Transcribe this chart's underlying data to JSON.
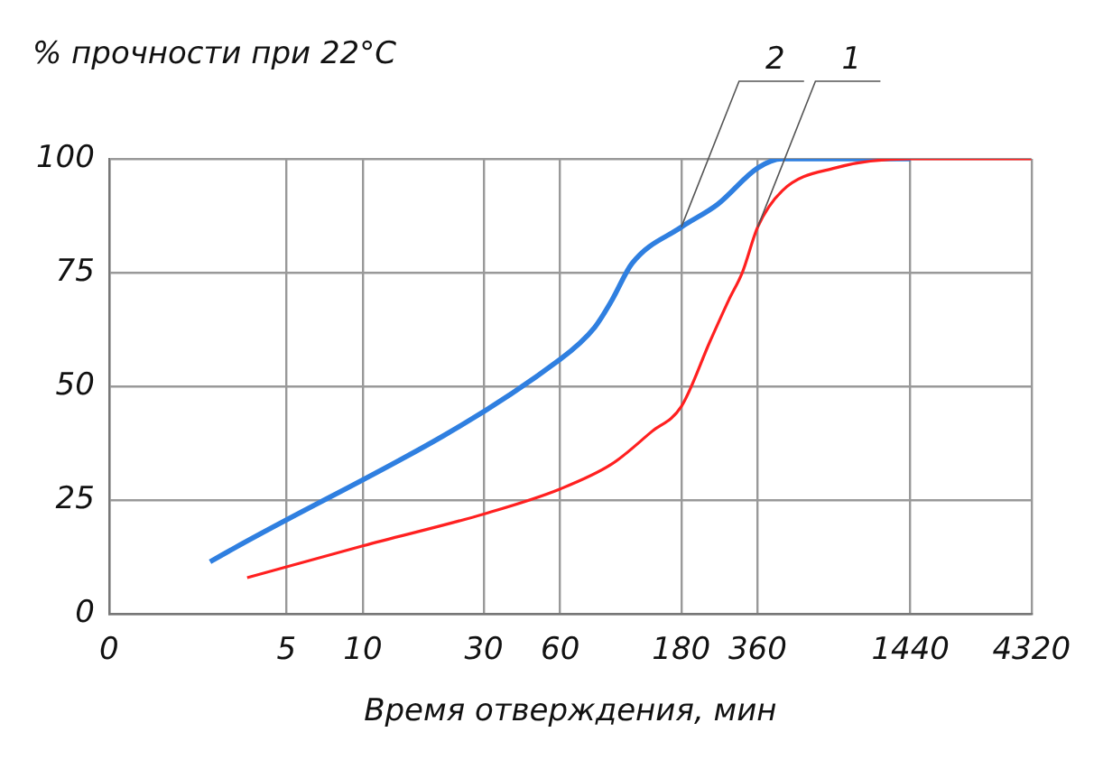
{
  "chart_data": {
    "type": "line",
    "ylabel": "% прочности при 22°C",
    "xlabel": "Время отверждения, мин",
    "log": "x",
    "xlim": [
      0,
      4320
    ],
    "xticks": [
      0,
      5,
      10,
      30,
      60,
      180,
      360,
      1440,
      4320
    ],
    "ylim": [
      0,
      100
    ],
    "yticks": [
      0,
      25,
      50,
      75,
      100
    ],
    "grid": true,
    "legend": false,
    "marker": "none",
    "line_style": "solid",
    "series": [
      {
        "name": "1",
        "color": "#ff2020",
        "x": [
          3.5,
          10,
          30,
          60,
          96,
          137,
          180,
          234,
          277,
          313,
          360,
          450,
          726,
          1440,
          4320
        ],
        "values": [
          8,
          15,
          22,
          27.5,
          33,
          40,
          45.6,
          60,
          69,
          75,
          85,
          93,
          98,
          100,
          100
        ]
      },
      {
        "name": "2",
        "color": "#2f7fe0",
        "x": [
          2.5,
          60,
          82,
          96,
          115,
          180,
          250,
          360,
          450,
          1440
        ],
        "values": [
          11.5,
          56,
          63,
          69,
          77,
          85,
          90,
          98,
          100,
          100
        ]
      }
    ]
  }
}
